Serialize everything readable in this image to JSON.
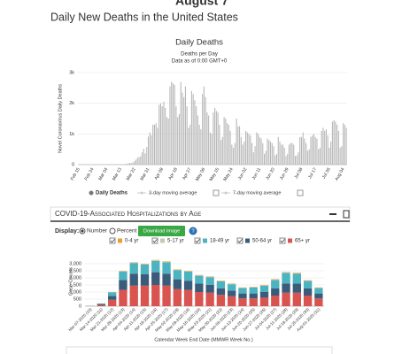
{
  "page": {
    "date": "August 7",
    "heading": "Daily New Deaths in the United States"
  },
  "controls": {
    "display_label": "Display:",
    "options": [
      "Number",
      "Percent"
    ],
    "button": "Download Image",
    "help": "?"
  },
  "chart_data": [
    {
      "type": "bar",
      "title": "Daily Deaths",
      "subtitle": "Deaths per Day",
      "note": "Data as of 0:00 GMT+0",
      "y_label": "Novel Coronavirus Daily Deaths",
      "grid": true,
      "ylim": [
        0,
        3000
      ],
      "yticks": [
        0,
        {
          "value": 1000,
          "label": "1k"
        },
        {
          "value": 2000,
          "label": "2k"
        },
        {
          "value": 3000,
          "label": "3k"
        }
      ],
      "categories": [
        "Feb 15",
        null,
        null,
        null,
        null,
        null,
        null,
        null,
        null,
        "Feb 24",
        null,
        null,
        null,
        null,
        null,
        null,
        null,
        null,
        "Mar 04",
        null,
        null,
        null,
        null,
        null,
        null,
        null,
        null,
        "Mar 13",
        null,
        null,
        null,
        null,
        null,
        null,
        null,
        null,
        "Mar 22",
        null,
        null,
        null,
        null,
        null,
        null,
        null,
        null,
        "Mar 31",
        null,
        null,
        null,
        null,
        null,
        null,
        null,
        null,
        "Apr 09",
        null,
        null,
        null,
        null,
        null,
        null,
        null,
        null,
        "Apr 18",
        null,
        null,
        null,
        null,
        null,
        null,
        null,
        null,
        "Apr 27",
        null,
        null,
        null,
        null,
        null,
        null,
        null,
        null,
        "May 06",
        null,
        null,
        null,
        null,
        null,
        null,
        null,
        null,
        "May 15",
        null,
        null,
        null,
        null,
        null,
        null,
        null,
        null,
        "May 24",
        null,
        null,
        null,
        null,
        null,
        null,
        null,
        null,
        "Jun 02",
        null,
        null,
        null,
        null,
        null,
        null,
        null,
        null,
        "Jun 11",
        null,
        null,
        null,
        null,
        null,
        null,
        null,
        null,
        "Jun 20",
        null,
        null,
        null,
        null,
        null,
        null,
        null,
        null,
        "Jun 29",
        null,
        null,
        null,
        null,
        null,
        null,
        null,
        null,
        "Jul 08",
        null,
        null,
        null,
        null,
        null,
        null,
        null,
        null,
        "Jul 17",
        null,
        null,
        null,
        null,
        null,
        null,
        null,
        null,
        "Jul 26",
        null,
        null,
        null,
        null,
        null,
        null,
        null,
        null,
        "Aug 04",
        null,
        null
      ],
      "series": [
        {
          "name": "Daily Deaths",
          "color": "#b5b5b5",
          "values": [
            0,
            0,
            0,
            0,
            0,
            0,
            0,
            0,
            0,
            0,
            0,
            0,
            0,
            0,
            1,
            0,
            1,
            2,
            3,
            4,
            3,
            4,
            3,
            5,
            8,
            7,
            11,
            9,
            10,
            12,
            18,
            23,
            40,
            56,
            49,
            68,
            110,
            160,
            225,
            245,
            270,
            400,
            520,
            360,
            570,
            910,
            1050,
            960,
            1300,
            1300,
            1350,
            1200,
            1950,
            2000,
            1900,
            2050,
            1850,
            1550,
            1500,
            2550,
            2700,
            2650,
            2600,
            1900,
            1550,
            1650,
            2700,
            2350,
            2200,
            2550,
            1900,
            1200,
            1300,
            2400,
            2300,
            2100,
            1900,
            1600,
            1300,
            1150,
            2300,
            2550,
            2200,
            1700,
            1600,
            1050,
            1000,
            1700,
            1850,
            1750,
            1700,
            1300,
            800,
            900,
            1550,
            1500,
            1350,
            1300,
            1100,
            650,
            550,
            700,
            1500,
            1250,
            1250,
            900,
            650,
            750,
            1100,
            1050,
            1000,
            950,
            700,
            400,
            600,
            1050,
            1000,
            900,
            850,
            700,
            350,
            450,
            850,
            800,
            750,
            700,
            600,
            300,
            350,
            900,
            750,
            650,
            650,
            550,
            280,
            350,
            650,
            700,
            700,
            650,
            280,
            300,
            400,
            900,
            900,
            1050,
            850,
            700,
            450,
            500,
            900,
            950,
            1000,
            900,
            850,
            500,
            550,
            1100,
            1200,
            1100,
            1150,
            950,
            550,
            750,
            1400,
            1450,
            1400,
            1300,
            1100,
            550,
            600,
            1350,
            1300,
            1200
          ]
        }
      ],
      "hidden_series": [
        {
          "name": "3-day moving average"
        },
        {
          "name": "7-day moving average"
        }
      ]
    },
    {
      "type": "stacked_bar",
      "title": "COVID-19-Associated Hospitalizations by Age",
      "y_label": "Case Counts",
      "x_label": "Calendar Week End Date (MMWR Week No.)",
      "grid": true,
      "ylim": [
        0,
        3500
      ],
      "yticks": [
        0,
        500,
        {
          "value": 1000,
          "label": "1,000"
        },
        {
          "value": 1500,
          "label": "1,500"
        },
        {
          "value": 2000,
          "label": "2,000"
        },
        {
          "value": 2500,
          "label": "2,500"
        },
        {
          "value": 3000,
          "label": "3,000"
        }
      ],
      "categories": [
        "Mar-07-2020 (10)",
        "Mar-14-2020 (11)",
        "Mar-21-2020 (12)",
        "Mar-28-2020 (13)",
        "Apr-04-2020 (14)",
        "Apr-11-2020 (15)",
        "Apr-18-2020 (16)",
        "Apr-25-2020 (17)",
        "May-02-2020 (18)",
        "May-09-2020 (19)",
        "May-16-2020 (20)",
        "May-23-2020 (21)",
        "May-30-2020 (22)",
        "Jun-06-2020 (23)",
        "Jun-13-2020 (24)",
        "Jun-20-2020 (25)",
        "Jun-27-2020 (26)",
        "Jul-04-2020 (27)",
        "Jul-11-2020 (28)",
        "Jul-18-2020 (29)",
        "Jul-25-2020 (30)",
        "Aug-01-2020 (31)"
      ],
      "series": [
        {
          "name": "0-4 yr",
          "color": "#ee9b34",
          "values": [
            1,
            5,
            15,
            25,
            30,
            30,
            35,
            35,
            30,
            30,
            30,
            30,
            30,
            30,
            25,
            25,
            30,
            30,
            30,
            35,
            30,
            25
          ]
        },
        {
          "name": "5-17 yr",
          "color": "#c4c9b4",
          "values": [
            0,
            3,
            10,
            20,
            25,
            25,
            30,
            30,
            25,
            25,
            25,
            25,
            25,
            25,
            20,
            20,
            25,
            30,
            30,
            35,
            25,
            20
          ]
        },
        {
          "name": "18-49 yr",
          "color": "#4cb3c0",
          "values": [
            5,
            40,
            250,
            600,
            750,
            700,
            800,
            800,
            650,
            650,
            550,
            550,
            500,
            450,
            380,
            420,
            450,
            600,
            750,
            700,
            530,
            380
          ]
        },
        {
          "name": "50-64 yr",
          "color": "#3a5c7a",
          "values": [
            5,
            60,
            280,
            700,
            850,
            800,
            900,
            850,
            700,
            650,
            600,
            550,
            450,
            400,
            350,
            350,
            400,
            500,
            650,
            650,
            500,
            350
          ]
        },
        {
          "name": "65+ yr",
          "color": "#d9534f",
          "values": [
            10,
            90,
            450,
            1150,
            1450,
            1450,
            1500,
            1450,
            1200,
            1150,
            1000,
            950,
            800,
            700,
            550,
            550,
            600,
            750,
            950,
            950,
            750,
            550
          ]
        }
      ]
    }
  ]
}
